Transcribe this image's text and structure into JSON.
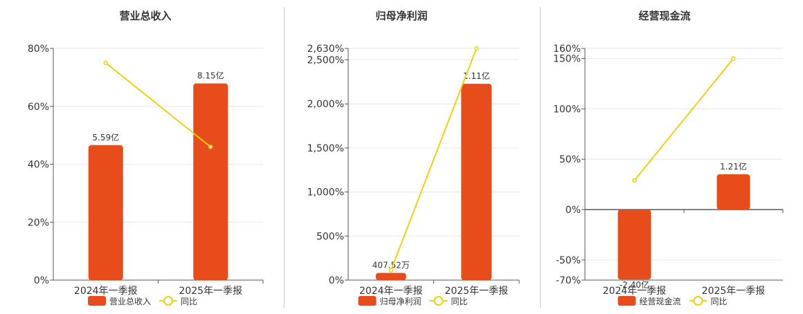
{
  "legend": {
    "line_label": "同比"
  },
  "colors": {
    "bar": "#e84c1b",
    "line": "#f2cf0a",
    "axis": "#555555",
    "grid": "#e6e6e6",
    "text": "#333333"
  },
  "chart_data": [
    {
      "type": "bar",
      "title": "营业总收入",
      "categories": [
        "2024年一季报",
        "2025年一季报"
      ],
      "series": [
        {
          "name": "营业总收入",
          "type": "bar",
          "values": [
            5.59,
            8.15
          ],
          "unit": "亿",
          "labels": [
            "5.59亿",
            "8.15亿"
          ]
        },
        {
          "name": "同比",
          "type": "line",
          "values": [
            75,
            46
          ],
          "unit": "%"
        }
      ],
      "y_ticks": [
        0,
        20,
        40,
        60,
        80
      ],
      "y_tick_labels": [
        "0%",
        "20%",
        "40%",
        "60%",
        "80%"
      ],
      "ylim": [
        0,
        80
      ],
      "bar_ylim": [
        0,
        9.6
      ],
      "grid": true
    },
    {
      "type": "bar",
      "title": "归母净利润",
      "categories": [
        "2024年一季报",
        "2025年一季报"
      ],
      "series": [
        {
          "name": "归母净利润",
          "type": "bar",
          "values": [
            0.040752,
            1.11
          ],
          "unit": "亿",
          "labels": [
            "407.52万",
            "1.11亿"
          ]
        },
        {
          "name": "同比",
          "type": "line",
          "values": [
            110,
            2630
          ],
          "unit": "%"
        }
      ],
      "y_ticks": [
        0,
        500,
        1000,
        1500,
        2000,
        2500,
        2630
      ],
      "y_tick_labels": [
        "0%",
        "500%",
        "1,000%",
        "1,500%",
        "2,000%",
        "2,500%",
        "2,630%"
      ],
      "ylim": [
        0,
        2630
      ],
      "bar_ylim": [
        0,
        1.31
      ],
      "grid": true
    },
    {
      "type": "bar",
      "title": "经营现金流",
      "categories": [
        "2024年一季报",
        "2025年一季报"
      ],
      "series": [
        {
          "name": "经营现金流",
          "type": "bar",
          "values": [
            -2.4,
            1.21
          ],
          "unit": "亿",
          "labels": [
            "-2.40亿",
            "1.21亿"
          ]
        },
        {
          "name": "同比",
          "type": "line",
          "values": [
            29,
            150
          ],
          "unit": "%"
        }
      ],
      "y_ticks": [
        -70,
        -50,
        0,
        50,
        100,
        150,
        160
      ],
      "y_tick_labels": [
        "-70%",
        "-50%",
        "0%",
        "50%",
        "100%",
        "150%",
        "160%"
      ],
      "ylim": [
        -70,
        160
      ],
      "bar_ylim": [
        -2.42,
        5.53
      ],
      "grid": true
    }
  ]
}
